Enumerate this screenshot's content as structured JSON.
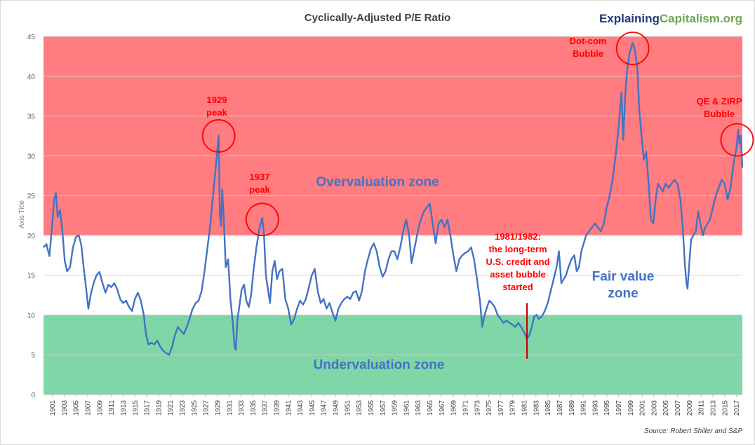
{
  "chart_data": {
    "type": "line",
    "title": "Cyclically-Adjusted P/E Ratio",
    "ylabel": "Axis Title",
    "ylim": [
      0,
      45
    ],
    "yticks": [
      0,
      5,
      10,
      15,
      20,
      25,
      30,
      35,
      40,
      45
    ],
    "xlim": [
      1900,
      2018.5
    ],
    "xticks": [
      "1901",
      "1903",
      "1905",
      "1907",
      "1909",
      "1911",
      "1913",
      "1915",
      "1917",
      "1919",
      "1921",
      "1923",
      "1925",
      "1927",
      "1929",
      "1931",
      "1933",
      "1935",
      "1937",
      "1939",
      "1941",
      "1943",
      "1945",
      "1947",
      "1949",
      "1951",
      "1953",
      "1955",
      "1957",
      "1959",
      "1961",
      "1963",
      "1965",
      "1967",
      "1969",
      "1971",
      "1973",
      "1975",
      "1977",
      "1979",
      "1981",
      "1983",
      "1985",
      "1987",
      "1989",
      "1991",
      "1993",
      "1995",
      "1997",
      "1999",
      "2001",
      "2003",
      "2005",
      "2007",
      "2009",
      "2011",
      "2013",
      "2015",
      "2017"
    ],
    "grid": true,
    "line_color": "#4472c4",
    "zones": [
      {
        "label": "Overvaluation zone",
        "from": 20,
        "to": 45,
        "color": "#ff7c80"
      },
      {
        "label": "Fair value zone",
        "label_lines": [
          "Fair value",
          "zone"
        ],
        "from": 10,
        "to": 20,
        "color": "#ffffff"
      },
      {
        "label": "Undervaluation zone",
        "from": 0,
        "to": 10,
        "color": "#7fd6a7"
      }
    ],
    "zone_label_color": "#4472c4",
    "annotation_color": "#ff0000",
    "annotations": [
      {
        "lines": [
          "1929",
          "peak"
        ],
        "x": 1929.7,
        "y": 32.5,
        "circle": true
      },
      {
        "lines": [
          "1937",
          "peak"
        ],
        "x": 1937.1,
        "y": 22.0,
        "circle": true
      },
      {
        "lines": [
          "Dot-com",
          "Bubble"
        ],
        "x": 1999.9,
        "y": 43.5,
        "circle": true
      },
      {
        "lines": [
          "QE & ZIRP",
          "Bubble"
        ],
        "x": 2017.6,
        "y": 32.0,
        "circle": true
      },
      {
        "lines": [
          "1981/1982:",
          "the long-term",
          "U.S. credit and",
          "asset bubble",
          "started"
        ],
        "x": 1982.0,
        "y": 7.0,
        "circle": false,
        "marker_line": true
      }
    ],
    "source": "Source: Robert Shiller and S&P",
    "series": [
      {
        "points": [
          [
            1900.0,
            18.5
          ],
          [
            1900.5,
            18.9
          ],
          [
            1901.0,
            17.4
          ],
          [
            1901.5,
            21.5
          ],
          [
            1901.8,
            24.5
          ],
          [
            1902.1,
            25.3
          ],
          [
            1902.4,
            22.3
          ],
          [
            1902.8,
            23.2
          ],
          [
            1903.2,
            20.5
          ],
          [
            1903.6,
            16.8
          ],
          [
            1904.0,
            15.5
          ],
          [
            1904.5,
            16.0
          ],
          [
            1905.0,
            18.5
          ],
          [
            1905.5,
            19.8
          ],
          [
            1906.0,
            20.0
          ],
          [
            1906.4,
            18.8
          ],
          [
            1906.8,
            16.0
          ],
          [
            1907.2,
            13.5
          ],
          [
            1907.6,
            10.8
          ],
          [
            1908.0,
            12.5
          ],
          [
            1908.5,
            14.0
          ],
          [
            1909.0,
            15.0
          ],
          [
            1909.5,
            15.4
          ],
          [
            1910.0,
            14.0
          ],
          [
            1910.5,
            12.8
          ],
          [
            1911.0,
            13.8
          ],
          [
            1911.5,
            13.5
          ],
          [
            1912.0,
            14.0
          ],
          [
            1912.5,
            13.2
          ],
          [
            1913.0,
            12.0
          ],
          [
            1913.5,
            11.5
          ],
          [
            1914.0,
            11.8
          ],
          [
            1914.5,
            11.0
          ],
          [
            1915.0,
            10.5
          ],
          [
            1915.5,
            12.0
          ],
          [
            1916.0,
            12.8
          ],
          [
            1916.5,
            11.8
          ],
          [
            1917.0,
            10.0
          ],
          [
            1917.4,
            7.5
          ],
          [
            1917.8,
            6.3
          ],
          [
            1918.3,
            6.5
          ],
          [
            1918.8,
            6.3
          ],
          [
            1919.3,
            6.8
          ],
          [
            1919.8,
            6.0
          ],
          [
            1920.3,
            5.5
          ],
          [
            1920.8,
            5.2
          ],
          [
            1921.3,
            5.0
          ],
          [
            1921.8,
            6.0
          ],
          [
            1922.3,
            7.5
          ],
          [
            1922.8,
            8.5
          ],
          [
            1923.3,
            8.0
          ],
          [
            1923.8,
            7.6
          ],
          [
            1924.3,
            8.5
          ],
          [
            1924.8,
            9.6
          ],
          [
            1925.3,
            10.8
          ],
          [
            1925.8,
            11.5
          ],
          [
            1926.3,
            11.8
          ],
          [
            1926.8,
            13.0
          ],
          [
            1927.3,
            15.5
          ],
          [
            1927.8,
            18.5
          ],
          [
            1928.3,
            21.5
          ],
          [
            1928.8,
            25.5
          ],
          [
            1929.2,
            28.5
          ],
          [
            1929.7,
            32.5
          ],
          [
            1929.9,
            22.5
          ],
          [
            1930.1,
            21.2
          ],
          [
            1930.3,
            25.8
          ],
          [
            1930.6,
            21.5
          ],
          [
            1930.9,
            16.0
          ],
          [
            1931.3,
            17.0
          ],
          [
            1931.7,
            12.0
          ],
          [
            1932.1,
            9.0
          ],
          [
            1932.4,
            6.0
          ],
          [
            1932.6,
            5.6
          ],
          [
            1932.9,
            9.5
          ],
          [
            1933.2,
            11.0
          ],
          [
            1933.6,
            13.2
          ],
          [
            1934.0,
            13.8
          ],
          [
            1934.4,
            11.8
          ],
          [
            1934.8,
            11.0
          ],
          [
            1935.2,
            12.5
          ],
          [
            1935.6,
            15.5
          ],
          [
            1936.1,
            18.5
          ],
          [
            1936.6,
            20.8
          ],
          [
            1937.1,
            22.2
          ],
          [
            1937.4,
            20.0
          ],
          [
            1937.7,
            15.0
          ],
          [
            1938.0,
            13.5
          ],
          [
            1938.4,
            11.5
          ],
          [
            1938.8,
            15.5
          ],
          [
            1939.2,
            16.8
          ],
          [
            1939.6,
            14.5
          ],
          [
            1940.0,
            15.5
          ],
          [
            1940.5,
            15.8
          ],
          [
            1941.0,
            12.0
          ],
          [
            1941.5,
            10.8
          ],
          [
            1942.0,
            8.8
          ],
          [
            1942.5,
            9.5
          ],
          [
            1943.0,
            10.8
          ],
          [
            1943.5,
            11.8
          ],
          [
            1944.0,
            11.3
          ],
          [
            1944.5,
            12.0
          ],
          [
            1945.0,
            13.5
          ],
          [
            1945.5,
            15.0
          ],
          [
            1946.0,
            15.8
          ],
          [
            1946.5,
            13.0
          ],
          [
            1947.0,
            11.5
          ],
          [
            1947.5,
            12.0
          ],
          [
            1948.0,
            10.8
          ],
          [
            1948.5,
            11.5
          ],
          [
            1949.0,
            10.3
          ],
          [
            1949.5,
            9.3
          ],
          [
            1950.0,
            10.8
          ],
          [
            1950.5,
            11.5
          ],
          [
            1951.0,
            12.0
          ],
          [
            1951.5,
            12.3
          ],
          [
            1952.0,
            12.0
          ],
          [
            1952.5,
            12.8
          ],
          [
            1953.0,
            13.0
          ],
          [
            1953.5,
            11.8
          ],
          [
            1954.0,
            13.0
          ],
          [
            1954.5,
            15.5
          ],
          [
            1955.0,
            17.0
          ],
          [
            1955.5,
            18.3
          ],
          [
            1956.0,
            19.0
          ],
          [
            1956.5,
            18.0
          ],
          [
            1957.0,
            16.0
          ],
          [
            1957.5,
            14.8
          ],
          [
            1958.0,
            15.5
          ],
          [
            1958.5,
            17.0
          ],
          [
            1959.0,
            18.0
          ],
          [
            1959.5,
            18.0
          ],
          [
            1960.0,
            17.0
          ],
          [
            1960.5,
            18.5
          ],
          [
            1961.0,
            20.5
          ],
          [
            1961.5,
            22.0
          ],
          [
            1962.0,
            20.0
          ],
          [
            1962.4,
            16.5
          ],
          [
            1962.8,
            18.0
          ],
          [
            1963.2,
            19.5
          ],
          [
            1963.6,
            21.0
          ],
          [
            1964.0,
            22.0
          ],
          [
            1964.5,
            23.0
          ],
          [
            1965.0,
            23.5
          ],
          [
            1965.5,
            24.0
          ],
          [
            1966.0,
            21.5
          ],
          [
            1966.5,
            19.0
          ],
          [
            1967.0,
            21.5
          ],
          [
            1967.5,
            22.0
          ],
          [
            1968.0,
            21.0
          ],
          [
            1968.5,
            22.0
          ],
          [
            1969.0,
            20.0
          ],
          [
            1969.5,
            17.5
          ],
          [
            1970.0,
            15.5
          ],
          [
            1970.5,
            17.0
          ],
          [
            1971.0,
            17.5
          ],
          [
            1971.5,
            17.8
          ],
          [
            1972.0,
            18.0
          ],
          [
            1972.5,
            18.5
          ],
          [
            1973.0,
            17.0
          ],
          [
            1973.5,
            14.5
          ],
          [
            1974.0,
            11.8
          ],
          [
            1974.4,
            8.5
          ],
          [
            1974.8,
            10.0
          ],
          [
            1975.2,
            11.0
          ],
          [
            1975.6,
            11.8
          ],
          [
            1976.0,
            11.5
          ],
          [
            1976.5,
            11.0
          ],
          [
            1977.0,
            10.0
          ],
          [
            1977.5,
            9.5
          ],
          [
            1978.0,
            9.0
          ],
          [
            1978.5,
            9.3
          ],
          [
            1979.0,
            9.0
          ],
          [
            1979.5,
            8.8
          ],
          [
            1980.0,
            8.5
          ],
          [
            1980.5,
            9.0
          ],
          [
            1981.0,
            8.5
          ],
          [
            1981.5,
            7.8
          ],
          [
            1982.0,
            7.0
          ],
          [
            1982.4,
            7.5
          ],
          [
            1982.8,
            8.5
          ],
          [
            1983.2,
            9.8
          ],
          [
            1983.6,
            10.0
          ],
          [
            1984.0,
            9.5
          ],
          [
            1984.5,
            9.8
          ],
          [
            1985.0,
            10.5
          ],
          [
            1985.5,
            11.5
          ],
          [
            1986.0,
            13.0
          ],
          [
            1986.5,
            14.5
          ],
          [
            1987.0,
            16.0
          ],
          [
            1987.4,
            18.0
          ],
          [
            1987.8,
            14.0
          ],
          [
            1988.2,
            14.5
          ],
          [
            1988.6,
            15.0
          ],
          [
            1989.0,
            16.0
          ],
          [
            1989.5,
            17.0
          ],
          [
            1990.0,
            17.5
          ],
          [
            1990.4,
            15.5
          ],
          [
            1990.8,
            16.0
          ],
          [
            1991.2,
            18.0
          ],
          [
            1991.6,
            19.0
          ],
          [
            1992.0,
            20.0
          ],
          [
            1992.5,
            20.5
          ],
          [
            1993.0,
            21.0
          ],
          [
            1993.5,
            21.5
          ],
          [
            1994.0,
            21.0
          ],
          [
            1994.5,
            20.5
          ],
          [
            1995.0,
            21.5
          ],
          [
            1995.5,
            23.5
          ],
          [
            1996.0,
            25.0
          ],
          [
            1996.5,
            27.0
          ],
          [
            1997.0,
            30.0
          ],
          [
            1997.5,
            33.5
          ],
          [
            1998.0,
            38.0
          ],
          [
            1998.3,
            32.0
          ],
          [
            1998.7,
            38.5
          ],
          [
            1999.0,
            41.0
          ],
          [
            1999.4,
            43.0
          ],
          [
            1999.9,
            44.2
          ],
          [
            2000.3,
            43.2
          ],
          [
            2000.7,
            41.0
          ],
          [
            2001.0,
            36.0
          ],
          [
            2001.4,
            32.5
          ],
          [
            2001.8,
            29.5
          ],
          [
            2002.2,
            30.5
          ],
          [
            2002.6,
            26.5
          ],
          [
            2003.0,
            22.0
          ],
          [
            2003.4,
            21.5
          ],
          [
            2003.8,
            24.5
          ],
          [
            2004.2,
            26.5
          ],
          [
            2004.6,
            26.0
          ],
          [
            2005.0,
            25.5
          ],
          [
            2005.5,
            26.5
          ],
          [
            2006.0,
            26.0
          ],
          [
            2006.5,
            26.5
          ],
          [
            2007.0,
            27.0
          ],
          [
            2007.5,
            26.5
          ],
          [
            2008.0,
            24.5
          ],
          [
            2008.4,
            21.0
          ],
          [
            2008.7,
            17.0
          ],
          [
            2009.0,
            14.0
          ],
          [
            2009.2,
            13.3
          ],
          [
            2009.5,
            16.5
          ],
          [
            2009.8,
            19.5
          ],
          [
            2010.2,
            20.0
          ],
          [
            2010.6,
            20.5
          ],
          [
            2011.0,
            23.0
          ],
          [
            2011.4,
            21.5
          ],
          [
            2011.8,
            20.0
          ],
          [
            2012.2,
            21.0
          ],
          [
            2012.6,
            21.5
          ],
          [
            2013.0,
            22.0
          ],
          [
            2013.5,
            23.5
          ],
          [
            2014.0,
            25.0
          ],
          [
            2014.5,
            26.0
          ],
          [
            2015.0,
            27.0
          ],
          [
            2015.5,
            26.5
          ],
          [
            2016.0,
            24.5
          ],
          [
            2016.5,
            26.0
          ],
          [
            2017.0,
            29.0
          ],
          [
            2017.5,
            31.0
          ],
          [
            2017.8,
            33.3
          ],
          [
            2018.0,
            31.5
          ],
          [
            2018.2,
            32.5
          ],
          [
            2018.4,
            30.0
          ],
          [
            2018.5,
            28.5
          ]
        ]
      }
    ]
  },
  "logo": {
    "part1": "Explaining",
    "part2": "Capitalism.org",
    "color1": "#1f3a7a",
    "color2": "#6aa84f"
  }
}
